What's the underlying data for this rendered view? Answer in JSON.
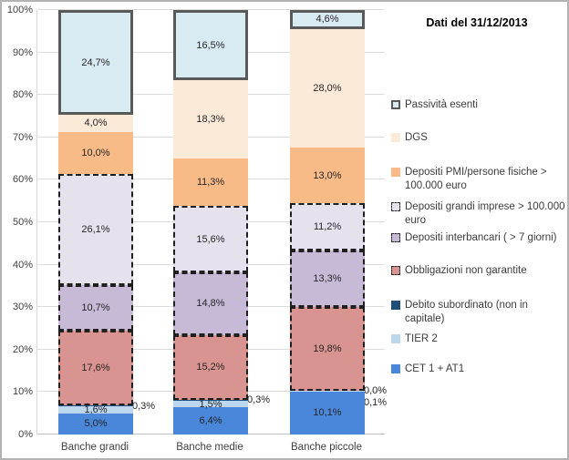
{
  "title": "Dati del 31/12/2013",
  "colors": {
    "cet1_at1": "#4a86d9",
    "tier2": "#bdd7ee",
    "debito_subordinato": "#1f4e79",
    "obbligazioni": "#d99391",
    "interbancari": "#c7bad7",
    "grandi_imprese": "#e5e1ed",
    "pmi": "#f8bb87",
    "dgs": "#fcead9",
    "passivita_esenti": "#d8eaf2",
    "esenti_border": "#595959",
    "dashed_border": "#1f1f1f",
    "gridline": "#dcdcdc",
    "axis_text": "#404040"
  },
  "chart_data": {
    "type": "bar",
    "stacked": true,
    "unit": "%",
    "title": "Dati del 31/12/2013",
    "categories": [
      "Banche grandi",
      "Banche medie",
      "Banche piccole"
    ],
    "y_axis": {
      "min": 0,
      "max": 100,
      "step": 10,
      "tick_labels": [
        "0%",
        "10%",
        "20%",
        "30%",
        "40%",
        "50%",
        "60%",
        "70%",
        "80%",
        "90%",
        "100%"
      ],
      "grid": true
    },
    "series": [
      {
        "name": "CET 1 + AT1",
        "color": "#4a86d9",
        "border": "none",
        "values": [
          5.0,
          6.4,
          10.1
        ],
        "labels": [
          "5,0%",
          "6,4%",
          "10,1%"
        ],
        "label_positions": [
          "inside",
          "inside",
          "inside"
        ]
      },
      {
        "name": "TIER 2",
        "color": "#bdd7ee",
        "border": "none",
        "values": [
          1.6,
          1.5,
          0.1
        ],
        "labels": [
          "1,6%",
          "1,5%",
          "0,1%"
        ],
        "label_positions": [
          "inside",
          "inside",
          "outside"
        ]
      },
      {
        "name": "Debito subordinato (non in capitale)",
        "color": "#1f4e79",
        "border": "none",
        "values": [
          0.3,
          0.3,
          0.0
        ],
        "labels": [
          "0,3%",
          "0,3%",
          "0,0%"
        ],
        "label_positions": [
          "outside",
          "outside",
          "outside"
        ]
      },
      {
        "name": "Obbligazioni non garantite",
        "color": "#d99391",
        "border": "dashed",
        "values": [
          17.6,
          15.2,
          19.8
        ],
        "labels": [
          "17,6%",
          "15,2%",
          "19,8%"
        ],
        "label_positions": [
          "inside",
          "inside",
          "inside"
        ]
      },
      {
        "name": "Depositi interbancari ( > 7 giorni)",
        "color": "#c7bad7",
        "border": "dashed",
        "values": [
          10.7,
          14.8,
          13.3
        ],
        "labels": [
          "10,7%",
          "14,8%",
          "13,3%"
        ],
        "label_positions": [
          "inside",
          "inside",
          "inside"
        ]
      },
      {
        "name": "Depositi grandi imprese > 100.000 euro",
        "color": "#e5e1ed",
        "border": "dashed",
        "values": [
          26.1,
          15.6,
          11.2
        ],
        "labels": [
          "26,1%",
          "15,6%",
          "11,2%"
        ],
        "label_positions": [
          "inside",
          "inside",
          "inside"
        ]
      },
      {
        "name": "Depositi PMI/persone fisiche > 100.000 euro",
        "color": "#f8bb87",
        "border": "none",
        "values": [
          10.0,
          11.3,
          13.0
        ],
        "labels": [
          "10,0%",
          "11,3%",
          "13,0%"
        ],
        "label_positions": [
          "inside",
          "inside",
          "inside"
        ]
      },
      {
        "name": "DGS",
        "color": "#fcead9",
        "border": "none",
        "values": [
          4.0,
          18.3,
          28.0
        ],
        "labels": [
          "4,0%",
          "18,3%",
          "28,0%"
        ],
        "label_positions": [
          "inside",
          "inside",
          "inside"
        ]
      },
      {
        "name": "Passività esenti",
        "color": "#d8eaf2",
        "border": "solid-dark",
        "values": [
          24.7,
          16.5,
          4.6
        ],
        "labels": [
          "24,7%",
          "16,5%",
          "4,6%"
        ],
        "label_positions": [
          "inside",
          "inside",
          "inside"
        ]
      }
    ],
    "legend": {
      "position": "right",
      "items": [
        {
          "label": "Passività esenti",
          "color": "#d8eaf2",
          "swatch_border": "solid-dark"
        },
        {
          "label": "DGS",
          "color": "#fcead9",
          "swatch_border": "none"
        },
        {
          "label": "Depositi PMI/persone fisiche > 100.000 euro",
          "color": "#f8bb87",
          "swatch_border": "none"
        },
        {
          "label": "Depositi grandi imprese > 100.000 euro",
          "color": "#e5e1ed",
          "swatch_border": "dashed"
        },
        {
          "label": "Depositi interbancari ( > 7 giorni)",
          "color": "#c7bad7",
          "swatch_border": "dashed"
        },
        {
          "label": "Obbligazioni non garantite",
          "color": "#d99391",
          "swatch_border": "dashed"
        },
        {
          "label": "Debito subordinato (non in capitale)",
          "color": "#1f4e79",
          "swatch_border": "none"
        },
        {
          "label": "TIER 2",
          "color": "#bdd7ee",
          "swatch_border": "none"
        },
        {
          "label": "CET 1 + AT1",
          "color": "#4a86d9",
          "swatch_border": "none"
        }
      ]
    }
  }
}
